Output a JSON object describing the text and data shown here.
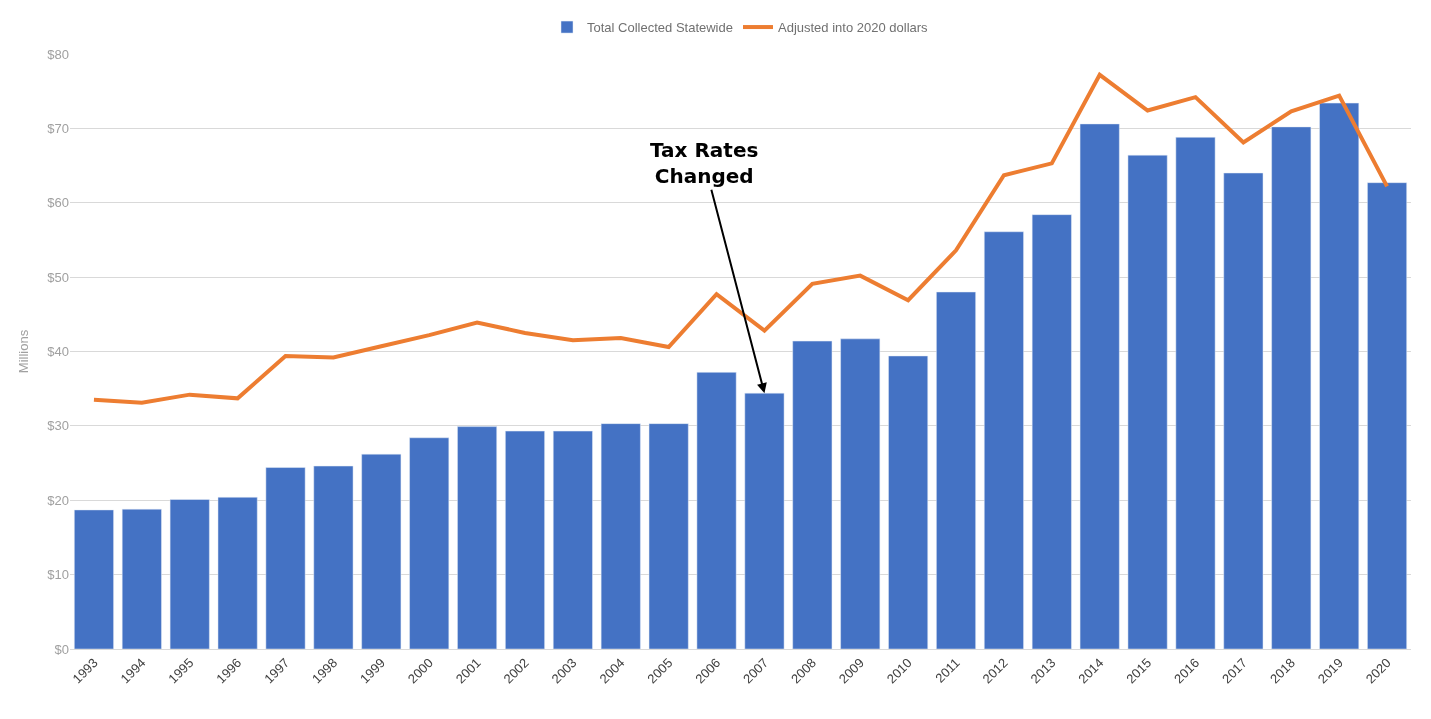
{
  "chart_data": {
    "type": "bar",
    "ylabel": "Millions",
    "categories": [
      "1993",
      "1994",
      "1995",
      "1996",
      "1997",
      "1998",
      "1999",
      "2000",
      "2001",
      "2002",
      "2003",
      "2004",
      "2005",
      "2006",
      "2007",
      "2008",
      "2009",
      "2010",
      "2011",
      "2012",
      "2013",
      "2014",
      "2015",
      "2016",
      "2017",
      "2018",
      "2019",
      "2020"
    ],
    "series": [
      {
        "name": "Total Collected Statewide",
        "color": "#4472c4",
        "values": [
          18.7,
          18.8,
          20.1,
          20.4,
          24.4,
          24.6,
          26.2,
          28.4,
          29.9,
          29.3,
          29.3,
          30.3,
          30.3,
          37.2,
          34.4,
          41.4,
          41.7,
          39.4,
          48.0,
          56.1,
          58.4,
          70.6,
          66.4,
          68.8,
          64.0,
          70.2,
          73.4,
          62.7
        ]
      },
      {
        "name": "Adjusted into 2020 dollars",
        "type": "line",
        "color": "#ed7d31",
        "marker": "none",
        "values": [
          33.5,
          33.1,
          34.2,
          33.7,
          39.4,
          39.2,
          40.7,
          42.2,
          43.9,
          42.5,
          41.5,
          41.8,
          40.6,
          47.7,
          42.8,
          49.1,
          50.2,
          46.9,
          53.6,
          63.7,
          65.3,
          77.2,
          72.4,
          74.2,
          68.1,
          72.3,
          74.4,
          62.2
        ]
      }
    ],
    "ylim": [
      0,
      80
    ],
    "yticks": [
      {
        "value": 0,
        "label": "$0"
      },
      {
        "value": 10,
        "label": "$10"
      },
      {
        "value": 20,
        "label": "$20"
      },
      {
        "value": 30,
        "label": "$30"
      },
      {
        "value": 40,
        "label": "$40"
      },
      {
        "value": 50,
        "label": "$50"
      },
      {
        "value": 60,
        "label": "$60"
      },
      {
        "value": 70,
        "label": "$70"
      },
      {
        "value": 80,
        "label": "$80"
      }
    ],
    "grid": "y",
    "legend": "top",
    "annotations": [
      {
        "text": "Tax Rates\nChanged",
        "x": "2007",
        "y": 34.4
      }
    ]
  }
}
